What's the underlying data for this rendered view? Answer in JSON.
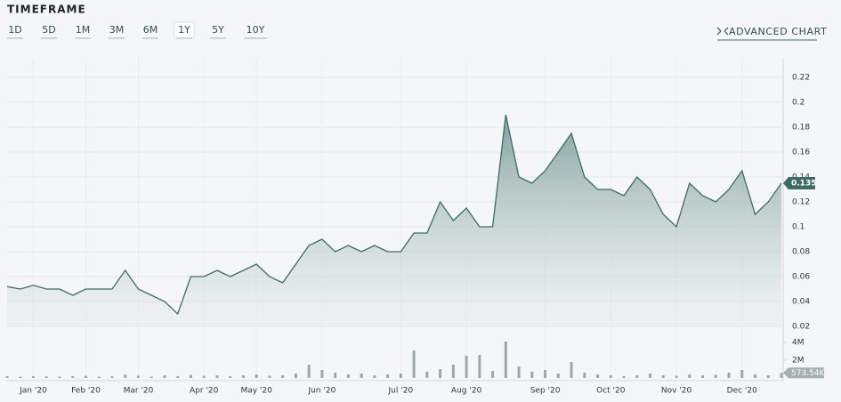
{
  "ui": {
    "title": "TIMEFRAME",
    "ranges": [
      "1D",
      "5D",
      "1M",
      "3M",
      "6M",
      "1Y",
      "5Y",
      "10Y"
    ],
    "active_range": 5,
    "advanced": "ADVANCED CHART"
  },
  "chart_data": {
    "type": "area",
    "color": "#3d6b66",
    "categories": [
      null,
      null,
      "Jan '20",
      null,
      null,
      null,
      "Feb '20",
      null,
      null,
      null,
      "Mar '20",
      null,
      null,
      null,
      null,
      "Apr '20",
      null,
      null,
      null,
      "May '20",
      null,
      null,
      null,
      null,
      "Jun '20",
      null,
      null,
      null,
      null,
      null,
      "Jul '20",
      null,
      null,
      null,
      null,
      "Aug '20",
      null,
      null,
      null,
      null,
      null,
      "Sep '20",
      null,
      null,
      null,
      null,
      "Oct '20",
      null,
      null,
      null,
      null,
      "Nov '20",
      null,
      null,
      null,
      null,
      "Dec '20",
      null,
      null,
      null
    ],
    "values": [
      0.052,
      0.05,
      0.053,
      0.05,
      0.05,
      0.045,
      0.05,
      0.05,
      0.05,
      0.065,
      0.05,
      0.045,
      0.04,
      0.03,
      0.06,
      0.06,
      0.065,
      0.06,
      0.065,
      0.07,
      0.06,
      0.055,
      0.07,
      0.085,
      0.09,
      0.08,
      0.085,
      0.08,
      0.085,
      0.08,
      0.08,
      0.095,
      0.095,
      0.12,
      0.105,
      0.115,
      0.1,
      0.1,
      0.19,
      0.14,
      0.135,
      0.145,
      0.16,
      0.175,
      0.14,
      0.13,
      0.13,
      0.125,
      0.14,
      0.13,
      0.11,
      0.1,
      0.135,
      0.125,
      0.12,
      0.13,
      0.145,
      0.11,
      0.12,
      0.135
    ],
    "ylim": [
      0.02,
      0.23
    ],
    "yticks": [
      0.02,
      0.04,
      0.06,
      0.08,
      0.1,
      0.12,
      0.14,
      0.16,
      0.18,
      0.2,
      0.22
    ],
    "volume": {
      "color": "#9aa9a7",
      "values": [
        200000,
        150000,
        200000,
        180000,
        150000,
        200000,
        250000,
        150000,
        180000,
        400000,
        250000,
        150000,
        300000,
        200000,
        350000,
        250000,
        300000,
        200000,
        300000,
        400000,
        250000,
        300000,
        500000,
        1500000,
        900000,
        600000,
        400000,
        500000,
        300000,
        400000,
        500000,
        3100000,
        700000,
        1000000,
        1500000,
        2500000,
        2600000,
        800000,
        4100000,
        1300000,
        700000,
        900000,
        500000,
        1800000,
        600000,
        400000,
        300000,
        200000,
        300000,
        500000,
        300000,
        250000,
        400000,
        300000,
        350000,
        600000,
        900000,
        400000,
        300000,
        573540
      ],
      "value_labels": {
        "59": "573.54K"
      },
      "ylim": [
        0,
        4400000
      ],
      "yticks": [
        {
          "value": 2000000,
          "label": "2M"
        },
        {
          "value": 4000000,
          "label": "4M"
        }
      ]
    }
  }
}
